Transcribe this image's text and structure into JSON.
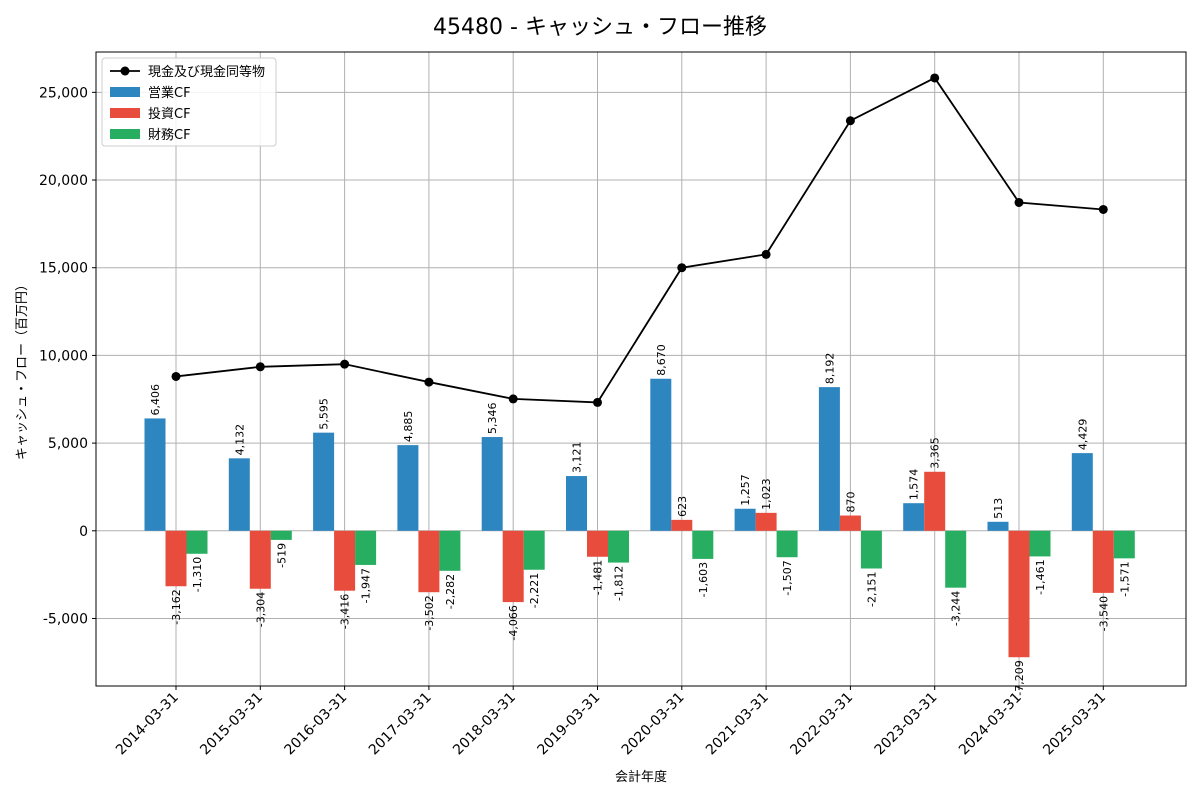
{
  "chart_data": {
    "type": "bar",
    "title": "45480 - キャッシュ・フロー推移",
    "xlabel": "会計年度",
    "ylabel": "キャッシュ・フロー（百万円）",
    "categories": [
      "2014-03-31",
      "2015-03-31",
      "2016-03-31",
      "2017-03-31",
      "2018-03-31",
      "2019-03-31",
      "2020-03-31",
      "2021-03-31",
      "2022-03-31",
      "2023-03-31",
      "2024-03-31",
      "2025-03-31"
    ],
    "series": [
      {
        "name": "営業CF",
        "kind": "bar",
        "color": "#2e86c1",
        "values": [
          6406,
          4132,
          5595,
          4885,
          5346,
          3121,
          8670,
          1257,
          8192,
          1574,
          513,
          4429
        ],
        "labels": [
          "6,406",
          "4,132",
          "5,595",
          "4,885",
          "5,346",
          "3,121",
          "8,670",
          "1,257",
          "8,192",
          "1,574",
          "513",
          "4,429"
        ]
      },
      {
        "name": "投資CF",
        "kind": "bar",
        "color": "#e74c3c",
        "values": [
          -3162,
          -3304,
          -3416,
          -3502,
          -4066,
          -1481,
          623,
          1023,
          870,
          3365,
          -7209,
          -3540
        ],
        "labels": [
          "-3,162",
          "-3,304",
          "-3,416",
          "-3,502",
          "-4,066",
          "-1,481",
          "623",
          "1,023",
          "870",
          "3,365",
          "-7,209",
          "-3,540"
        ]
      },
      {
        "name": "財務CF",
        "kind": "bar",
        "color": "#27ae60",
        "values": [
          -1310,
          -519,
          -1947,
          -2282,
          -2221,
          -1812,
          -1603,
          -1507,
          -2151,
          -3244,
          -1461,
          -1571
        ],
        "labels": [
          "-1,310",
          "-519",
          "-1,947",
          "-2,282",
          "-2,221",
          "-1,812",
          "-1,603",
          "-1,507",
          "-2,151",
          "-3,244",
          "-1,461",
          "-1,571"
        ]
      },
      {
        "name": "現金及び現金同等物",
        "kind": "line",
        "color": "#000000",
        "values": [
          8800,
          9350,
          9500,
          8480,
          7520,
          7320,
          15000,
          15760,
          23380,
          25820,
          18720,
          18320
        ]
      }
    ],
    "ylim": [
      -8850,
      27300
    ],
    "yticks": [
      -5000,
      0,
      5000,
      10000,
      15000,
      20000,
      25000
    ],
    "ytick_labels": [
      "-5,000",
      "0",
      "5,000",
      "10,000",
      "15,000",
      "20,000",
      "25,000"
    ],
    "grid": true,
    "legend": "top-left"
  }
}
